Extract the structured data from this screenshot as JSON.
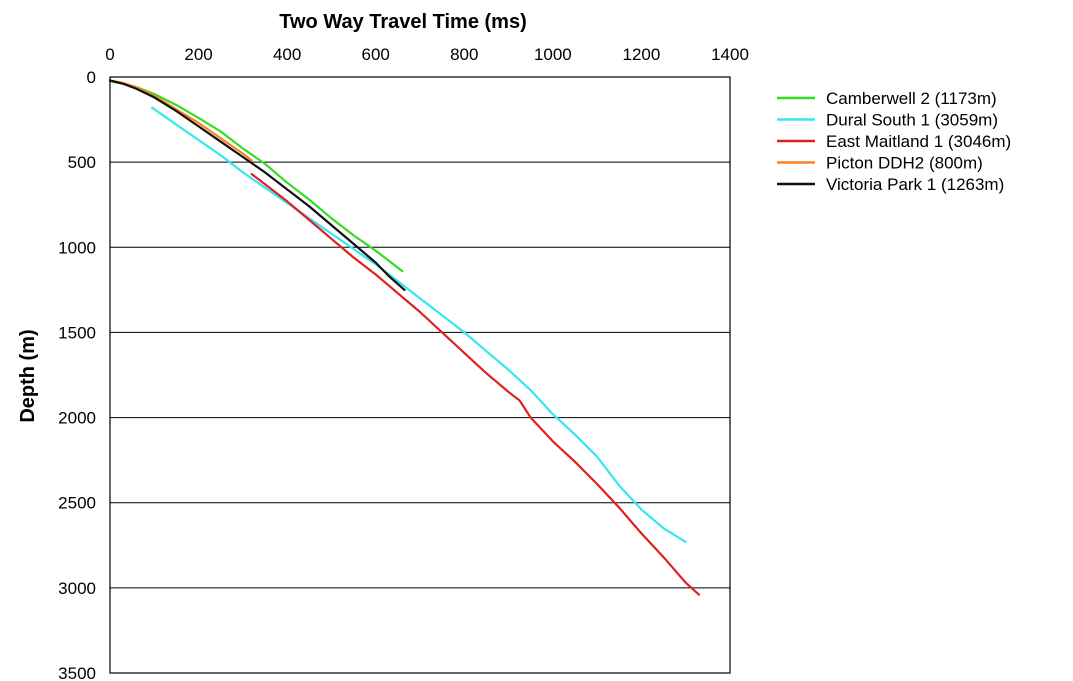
{
  "chart_data": {
    "type": "line",
    "title": "",
    "xlabel": "Two Way Travel Time (ms)",
    "ylabel": "Depth (m)",
    "x_axis_position": "top",
    "y_axis_inverted": true,
    "xlim": [
      0,
      1400
    ],
    "ylim": [
      0,
      3500
    ],
    "x_ticks": [
      0,
      200,
      400,
      600,
      800,
      1000,
      1200,
      1400
    ],
    "y_ticks": [
      0,
      500,
      1000,
      1500,
      2000,
      2500,
      3000,
      3500
    ],
    "grid": {
      "horizontal": true,
      "vertical": false
    },
    "legend_position": "right",
    "series": [
      {
        "name": "Camberwell 2 (1173m)",
        "color": "#33dd22",
        "x": [
          0,
          30,
          60,
          100,
          150,
          200,
          250,
          300,
          350,
          400,
          450,
          500,
          550,
          600,
          630,
          660
        ],
        "y": [
          25,
          40,
          60,
          100,
          165,
          240,
          320,
          420,
          510,
          620,
          720,
          830,
          930,
          1020,
          1080,
          1140
        ]
      },
      {
        "name": "Dural South 1 (3059m)",
        "color": "#33e8f0",
        "x": [
          95,
          150,
          200,
          250,
          300,
          350,
          400,
          450,
          500,
          550,
          600,
          650,
          700,
          750,
          800,
          850,
          900,
          950,
          1000,
          1050,
          1100,
          1150,
          1200,
          1250,
          1300
        ],
        "y": [
          180,
          280,
          370,
          460,
          560,
          650,
          740,
          830,
          920,
          1010,
          1100,
          1200,
          1300,
          1400,
          1500,
          1610,
          1720,
          1840,
          1980,
          2100,
          2230,
          2400,
          2540,
          2650,
          2730
        ]
      },
      {
        "name": "East Maitland 1 (3046m)",
        "color": "#e02020",
        "x": [
          320,
          350,
          400,
          450,
          500,
          550,
          600,
          650,
          700,
          750,
          800,
          850,
          900,
          925,
          950,
          1000,
          1050,
          1100,
          1150,
          1200,
          1250,
          1300,
          1330
        ],
        "y": [
          570,
          630,
          730,
          840,
          950,
          1060,
          1160,
          1270,
          1380,
          1500,
          1620,
          1740,
          1850,
          1900,
          2000,
          2140,
          2260,
          2390,
          2530,
          2680,
          2820,
          2970,
          3040
        ]
      },
      {
        "name": "Picton DDH2 (800m)",
        "color": "#ff8020",
        "x": [
          0,
          30,
          60,
          100,
          150,
          200,
          250,
          300,
          320
        ],
        "y": [
          20,
          35,
          60,
          110,
          190,
          270,
          360,
          450,
          490
        ]
      },
      {
        "name": "Victoria Park 1 (1263m)",
        "color": "#111111",
        "x": [
          0,
          30,
          60,
          100,
          150,
          200,
          250,
          300,
          350,
          400,
          450,
          500,
          550,
          600,
          630,
          665
        ],
        "y": [
          20,
          40,
          70,
          120,
          200,
          290,
          380,
          470,
          560,
          660,
          760,
          870,
          980,
          1090,
          1170,
          1250
        ]
      }
    ]
  }
}
